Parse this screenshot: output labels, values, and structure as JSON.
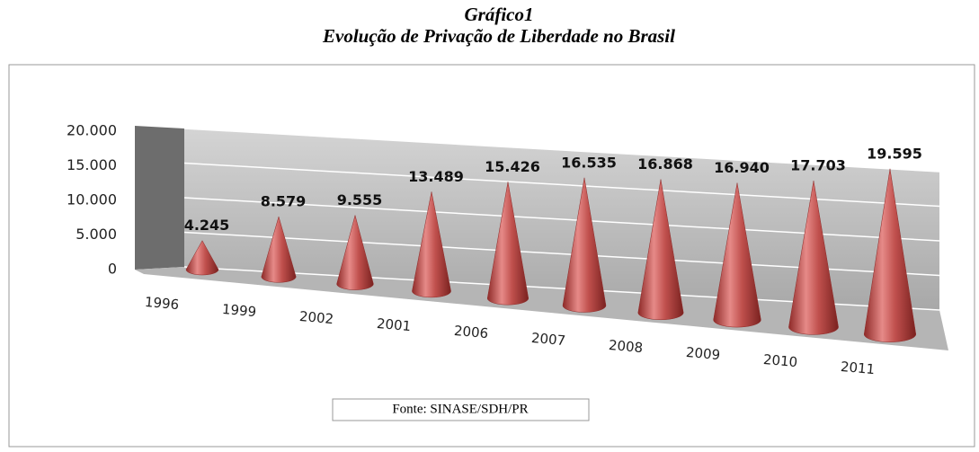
{
  "chart_data": {
    "type": "cone",
    "title": "Gráfico1",
    "subtitle": "Evolução de Privação de Liberdade no Brasil",
    "categories": [
      "1996",
      "1999",
      "2002",
      "2001",
      "2006",
      "2007",
      "2008",
      "2009",
      "2010",
      "2011"
    ],
    "values": [
      4245,
      8579,
      9555,
      13489,
      15426,
      16535,
      16868,
      16940,
      17703,
      19595
    ],
    "value_labels": [
      "4.245",
      "8.579",
      "9.555",
      "13.489",
      "15.426",
      "16.535",
      "16.868",
      "16.940",
      "17.703",
      "19.595"
    ],
    "color": "#c0504d",
    "ylim": [
      0,
      20000
    ],
    "yticks": [
      0,
      {
        "value": 5000,
        "label": "5.000"
      },
      {
        "value": 10000,
        "label": "10.000"
      },
      {
        "value": 15000,
        "label": "15.000"
      },
      {
        "value": 20000,
        "label": "20.000"
      }
    ],
    "grid": true,
    "source": "Fonte: SINASE/SDH/PR"
  }
}
